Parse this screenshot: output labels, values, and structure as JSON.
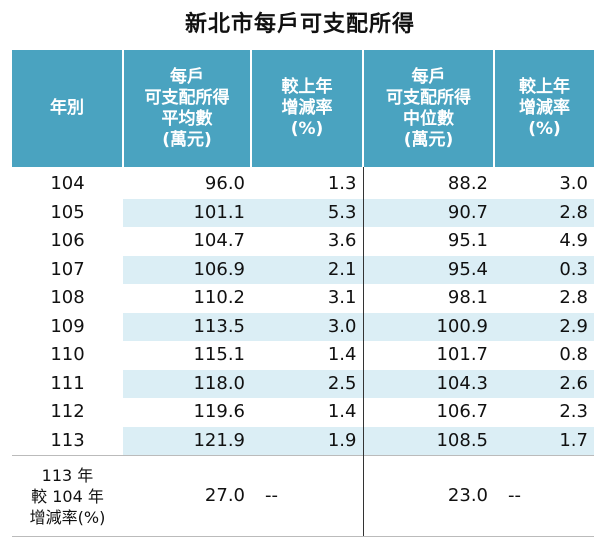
{
  "title": "新北市每戶可支配所得",
  "headers": {
    "year": "年別",
    "avg": [
      "每戶",
      "可支配所得",
      "平均數",
      "(萬元)"
    ],
    "avg_change": [
      "較上年",
      "增減率",
      "(%)"
    ],
    "median": [
      "每戶",
      "可支配所得",
      "中位數",
      "(萬元)"
    ],
    "median_change": [
      "較上年",
      "增減率",
      "(%)"
    ]
  },
  "rows": [
    {
      "year": "104",
      "avg": "96.0",
      "avg_change": "1.3",
      "median": "88.2",
      "median_change": "3.0"
    },
    {
      "year": "105",
      "avg": "101.1",
      "avg_change": "5.3",
      "median": "90.7",
      "median_change": "2.8"
    },
    {
      "year": "106",
      "avg": "104.7",
      "avg_change": "3.6",
      "median": "95.1",
      "median_change": "4.9"
    },
    {
      "year": "107",
      "avg": "106.9",
      "avg_change": "2.1",
      "median": "95.4",
      "median_change": "0.3"
    },
    {
      "year": "108",
      "avg": "110.2",
      "avg_change": "3.1",
      "median": "98.1",
      "median_change": "2.8"
    },
    {
      "year": "109",
      "avg": "113.5",
      "avg_change": "3.0",
      "median": "100.9",
      "median_change": "2.9"
    },
    {
      "year": "110",
      "avg": "115.1",
      "avg_change": "1.4",
      "median": "101.7",
      "median_change": "0.8"
    },
    {
      "year": "111",
      "avg": "118.0",
      "avg_change": "2.5",
      "median": "104.3",
      "median_change": "2.6"
    },
    {
      "year": "112",
      "avg": "119.6",
      "avg_change": "1.4",
      "median": "106.7",
      "median_change": "2.3"
    },
    {
      "year": "113",
      "avg": "121.9",
      "avg_change": "1.9",
      "median": "108.5",
      "median_change": "1.7"
    }
  ],
  "summary": {
    "label": [
      "113 年",
      "較 104 年",
      "增減率(%)"
    ],
    "avg": "27.0",
    "avg_change": "--",
    "median": "23.0",
    "median_change": "--"
  },
  "colors": {
    "header_bg": "#4aa3c0",
    "stripe_bg": "#dbeef5"
  }
}
